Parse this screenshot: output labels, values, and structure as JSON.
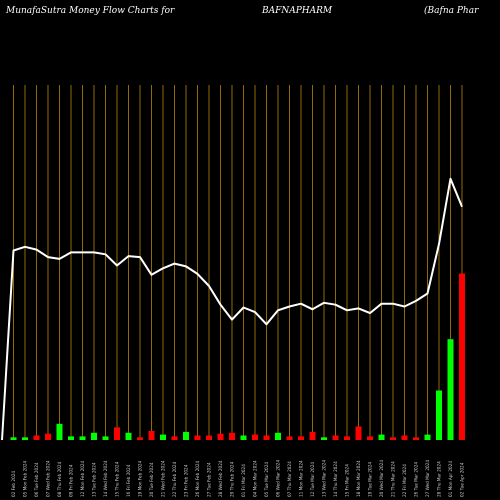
{
  "header": {
    "left": "MunafaSutra  Money Flow  Charts for",
    "center": "BAFNAPHARM",
    "right": "(Bafna  Phar"
  },
  "colors": {
    "background": "#000000",
    "gridline": "#b8860b",
    "line": "#ffffff",
    "bar_up": "#00ff00",
    "bar_down": "#ff0000"
  },
  "chart_data": {
    "type": "bar",
    "grid": true,
    "x_labels": [
      "02 Feb 2024",
      "05 Mon Feb 2024",
      "06 Tue Feb 2024",
      "07 Wed Feb 2024",
      "08 Thu Feb 2024",
      "09 Fri Feb 2024",
      "12 Mon Feb 2024",
      "13 Tue Feb 2024",
      "14 Wed Feb 2024",
      "15 Thu Feb 2024",
      "16 Fri Feb 2024",
      "19 Mon Feb 2024",
      "20 Tue Feb 2024",
      "21 Wed Feb 2024",
      "22 Thu Feb 2024",
      "23 Fri Feb 2024",
      "26 Mon Feb 2024",
      "27 Tue Feb 2024",
      "28 Wed Feb 2024",
      "29 Thu Feb 2024",
      "01 Fri Mar 2024",
      "04 Mon Mar 2024",
      "05 Tue Mar 2024",
      "06 Wed Mar 2024",
      "07 Thu Mar 2024",
      "11 Mon Mar 2024",
      "12 Tue Mar 2024",
      "13 Wed Mar 2024",
      "14 Thu Mar 2024",
      "15 Fri Mar 2024",
      "18 Mon Mar 2024",
      "19 Tue Mar 2024",
      "20 Wed Mar 2024",
      "21 Thu Mar 2024",
      "22 Fri Mar 2024",
      "26 Tue Mar 2024",
      "27 Wed Mar 2024",
      "28 Thu Mar 2024",
      "01 Mon Apr 2024",
      "02 Tue Apr 2024"
    ],
    "bars": [
      {
        "value": 0,
        "color": "none"
      },
      {
        "value": 3,
        "color": "green"
      },
      {
        "value": 3,
        "color": "green"
      },
      {
        "value": 5,
        "color": "red"
      },
      {
        "value": 7,
        "color": "red"
      },
      {
        "value": 18,
        "color": "green"
      },
      {
        "value": 4,
        "color": "green"
      },
      {
        "value": 4,
        "color": "green"
      },
      {
        "value": 8,
        "color": "green"
      },
      {
        "value": 4,
        "color": "green"
      },
      {
        "value": 14,
        "color": "red"
      },
      {
        "value": 8,
        "color": "green"
      },
      {
        "value": 3,
        "color": "red"
      },
      {
        "value": 10,
        "color": "red"
      },
      {
        "value": 6,
        "color": "green"
      },
      {
        "value": 4,
        "color": "red"
      },
      {
        "value": 9,
        "color": "green"
      },
      {
        "value": 5,
        "color": "red"
      },
      {
        "value": 5,
        "color": "red"
      },
      {
        "value": 7,
        "color": "red"
      },
      {
        "value": 8,
        "color": "red"
      },
      {
        "value": 5,
        "color": "green"
      },
      {
        "value": 6,
        "color": "red"
      },
      {
        "value": 5,
        "color": "red"
      },
      {
        "value": 8,
        "color": "green"
      },
      {
        "value": 4,
        "color": "red"
      },
      {
        "value": 4,
        "color": "red"
      },
      {
        "value": 9,
        "color": "red"
      },
      {
        "value": 3,
        "color": "green"
      },
      {
        "value": 5,
        "color": "red"
      },
      {
        "value": 4,
        "color": "red"
      },
      {
        "value": 15,
        "color": "red"
      },
      {
        "value": 4,
        "color": "red"
      },
      {
        "value": 6,
        "color": "green"
      },
      {
        "value": 3,
        "color": "red"
      },
      {
        "value": 5,
        "color": "red"
      },
      {
        "value": 3,
        "color": "red"
      },
      {
        "value": 6,
        "color": "green"
      },
      {
        "value": 55,
        "color": "green"
      },
      {
        "value": 112,
        "color": "green"
      },
      {
        "value": 185,
        "color": "red"
      }
    ],
    "line_values": [
      0,
      203,
      207,
      204,
      196,
      194,
      201,
      201,
      201,
      199,
      187,
      197,
      196,
      177,
      184,
      189,
      186,
      178,
      165,
      145,
      129,
      142,
      137,
      124,
      139,
      143,
      146,
      140,
      147,
      145,
      139,
      141,
      136,
      146,
      146,
      143,
      149,
      157,
      210,
      280,
      250
    ],
    "ylim": [
      0,
      300
    ]
  }
}
